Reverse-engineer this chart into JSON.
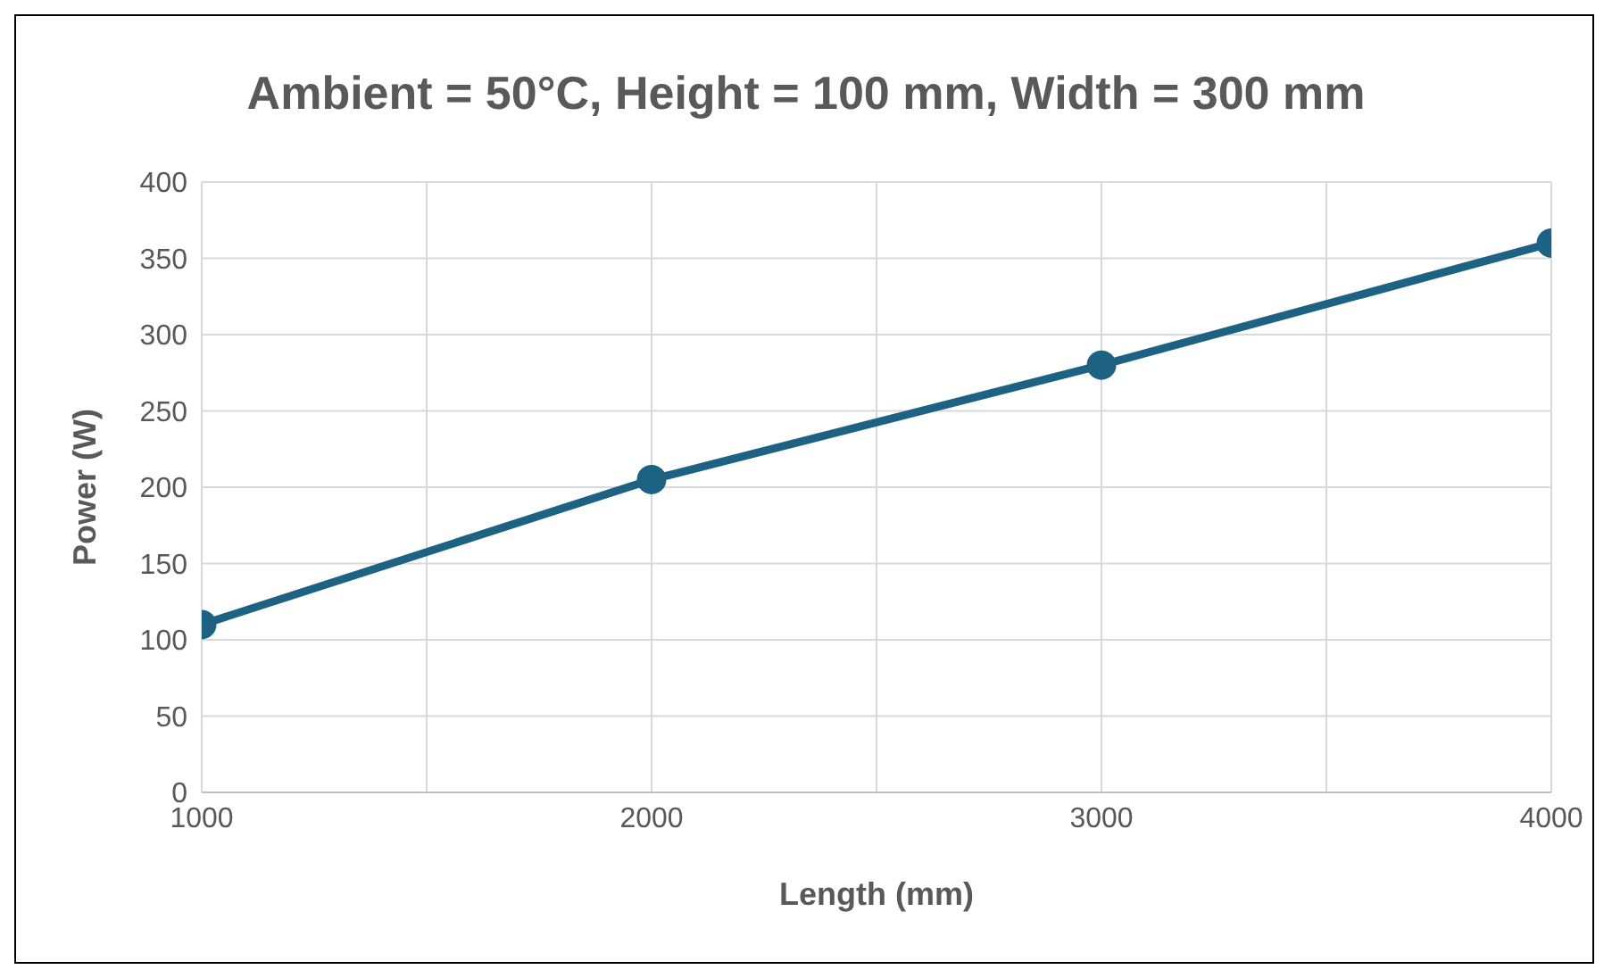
{
  "chart_data": {
    "type": "line",
    "title": "Ambient = 50°C, Height = 100 mm, Width = 300 mm",
    "xlabel": "Length (mm)",
    "ylabel": "Power (W)",
    "x": [
      1000,
      2000,
      3000,
      4000
    ],
    "series": [
      {
        "color": "#1d6282",
        "values": [
          110,
          205,
          280,
          360
        ]
      }
    ],
    "xlim": [
      1000,
      4000
    ],
    "xticks": [
      1000,
      {
        "value": 1500,
        "label": null
      },
      2000,
      {
        "value": 2500,
        "label": null
      },
      3000,
      {
        "value": 3500,
        "label": null
      },
      4000
    ],
    "ylim": [
      0,
      400
    ],
    "yticks": [
      0,
      50,
      100,
      150,
      200,
      250,
      300,
      350,
      400
    ],
    "grid": true,
    "legend": false,
    "marker": "circle",
    "line_style": "solid"
  }
}
